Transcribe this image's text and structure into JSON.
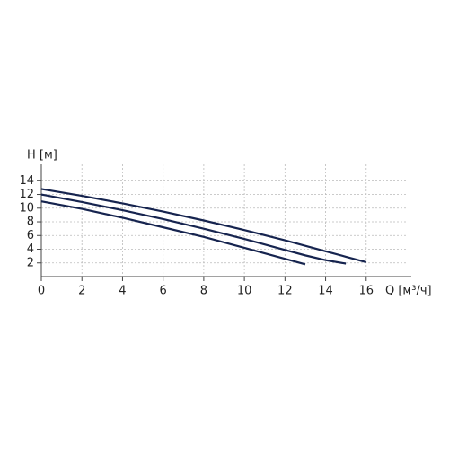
{
  "chart_data": {
    "type": "line",
    "y_label": "H [м]",
    "x_label": "Q [м³/ч]",
    "x": [
      0,
      2,
      4,
      6,
      8,
      10,
      12,
      13,
      14,
      15,
      16
    ],
    "series": [
      {
        "color": "#16244f",
        "values": [
          12.8,
          11.8,
          10.7,
          9.5,
          8.2,
          6.8,
          5.3,
          4.5,
          3.7,
          2.9,
          2.1
        ]
      },
      {
        "color": "#16244f",
        "values": [
          12.0,
          10.9,
          9.7,
          8.4,
          7.0,
          5.5,
          3.9,
          3.1,
          2.4,
          1.9,
          null
        ]
      },
      {
        "color": "#16244f",
        "values": [
          11.0,
          9.9,
          8.6,
          7.2,
          5.8,
          4.2,
          2.6,
          1.8,
          null,
          null,
          null
        ]
      }
    ],
    "xlim": [
      0,
      18
    ],
    "ylim": [
      0,
      16.4
    ],
    "xticks": [
      0,
      2,
      4,
      6,
      8,
      10,
      12,
      14,
      16
    ],
    "yticks": [
      2,
      4,
      6,
      8,
      10,
      12,
      14
    ],
    "grid": true
  }
}
